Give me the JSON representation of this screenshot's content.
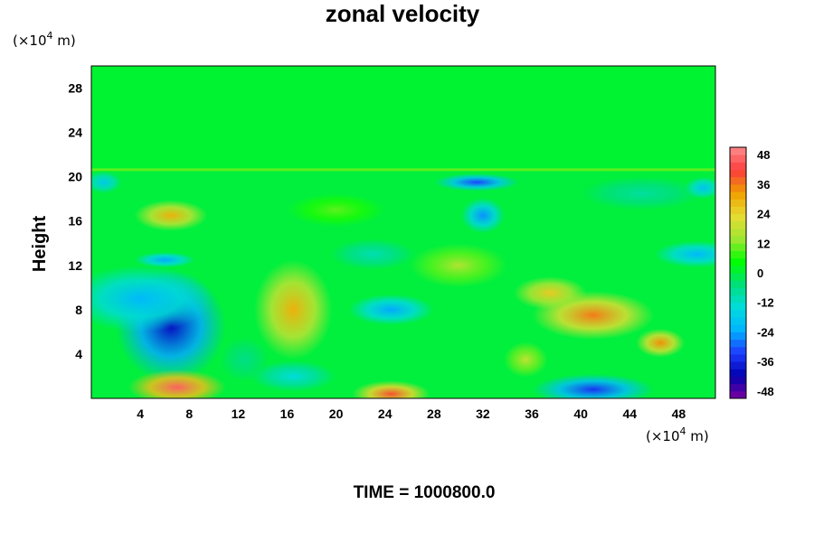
{
  "chart_data": {
    "type": "heatmap",
    "title": "zonal velocity",
    "ylabel": "Height",
    "x_unit_prefix": "(×10",
    "x_unit_exp": "4",
    "x_unit_suffix": " m)",
    "y_unit_prefix": "(×10",
    "y_unit_exp": "4",
    "y_unit_suffix": " m)",
    "footer": "TIME = 1000800.0",
    "xlim": [
      0,
      51
    ],
    "ylim": [
      0,
      30
    ],
    "x_ticks": [
      4,
      8,
      12,
      16,
      20,
      24,
      28,
      32,
      36,
      40,
      44,
      48
    ],
    "y_ticks": [
      4,
      8,
      12,
      16,
      20,
      24,
      28
    ],
    "colorbar": {
      "range": [
        -51,
        51
      ],
      "ticks": [
        -48,
        -36,
        -24,
        -12,
        0,
        12,
        24,
        36,
        48
      ],
      "stops": [
        "#7b00a0",
        "#0000b0",
        "#1e3cff",
        "#00b4ff",
        "#00dcdc",
        "#00e07a",
        "#00ff00",
        "#a0e632",
        "#e6dc32",
        "#f0a000",
        "#fa3c3c",
        "#ff8c8c"
      ]
    },
    "background_value": 0,
    "features": [
      {
        "x": 6.5,
        "y": 6.5,
        "rx": 4.5,
        "ry": 5.0,
        "value": -40
      },
      {
        "x": 4.0,
        "y": 9.0,
        "rx": 6.0,
        "ry": 3.0,
        "value": -22
      },
      {
        "x": 16.5,
        "y": 8.0,
        "rx": 3.2,
        "ry": 4.5,
        "value": 30
      },
      {
        "x": 7.0,
        "y": 1.0,
        "rx": 4.0,
        "ry": 1.6,
        "value": 46
      },
      {
        "x": 24.5,
        "y": 0.4,
        "rx": 3.2,
        "ry": 1.2,
        "value": 40
      },
      {
        "x": 41.0,
        "y": 7.5,
        "rx": 5.0,
        "ry": 2.2,
        "value": 36
      },
      {
        "x": 46.5,
        "y": 5.0,
        "rx": 2.0,
        "ry": 1.3,
        "value": 34
      },
      {
        "x": 37.5,
        "y": 9.5,
        "rx": 3.0,
        "ry": 1.5,
        "value": 26
      },
      {
        "x": 41.0,
        "y": 0.8,
        "rx": 5.0,
        "ry": 1.4,
        "value": -34
      },
      {
        "x": 31.5,
        "y": 19.5,
        "rx": 3.5,
        "ry": 0.8,
        "value": -32
      },
      {
        "x": 32.0,
        "y": 16.5,
        "rx": 1.8,
        "ry": 1.6,
        "value": -26
      },
      {
        "x": 6.5,
        "y": 16.5,
        "rx": 3.0,
        "ry": 1.4,
        "value": 30
      },
      {
        "x": 6.0,
        "y": 12.5,
        "rx": 2.5,
        "ry": 0.7,
        "value": -24
      },
      {
        "x": 24.5,
        "y": 8.0,
        "rx": 3.5,
        "ry": 1.4,
        "value": -24
      },
      {
        "x": 16.5,
        "y": 2.0,
        "rx": 3.5,
        "ry": 1.4,
        "value": -14
      },
      {
        "x": 49.5,
        "y": 13.0,
        "rx": 3.5,
        "ry": 1.2,
        "value": -22
      },
      {
        "x": 30.0,
        "y": 12.0,
        "rx": 4.0,
        "ry": 2.0,
        "value": 16
      },
      {
        "x": 23.0,
        "y": 13.0,
        "rx": 3.5,
        "ry": 1.4,
        "value": -10
      },
      {
        "x": 45.0,
        "y": 18.5,
        "rx": 5.0,
        "ry": 1.5,
        "value": -8
      },
      {
        "x": 20.0,
        "y": 17.0,
        "rx": 4.0,
        "ry": 1.5,
        "value": 10
      },
      {
        "x": 1.0,
        "y": 19.5,
        "rx": 1.5,
        "ry": 1.0,
        "value": -18
      },
      {
        "x": 50.0,
        "y": 19.0,
        "rx": 1.5,
        "ry": 1.0,
        "value": -20
      },
      {
        "x": 35.5,
        "y": 3.5,
        "rx": 1.8,
        "ry": 1.6,
        "value": 18
      },
      {
        "x": 12.5,
        "y": 3.5,
        "rx": 2.0,
        "ry": 2.0,
        "value": -6
      }
    ]
  }
}
